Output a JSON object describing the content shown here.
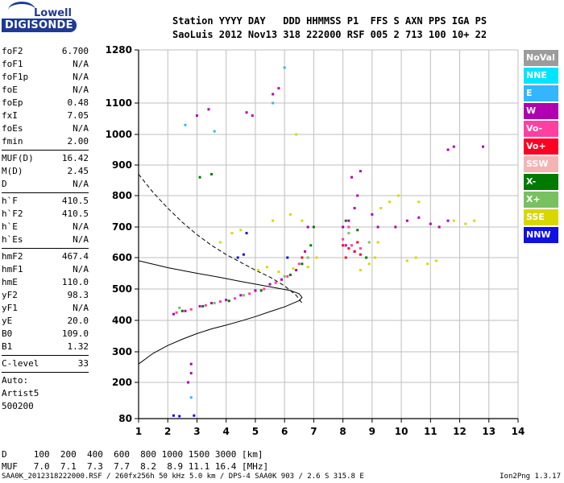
{
  "logo": {
    "line1": "Lowell",
    "line2": "DIGISONDE"
  },
  "header": {
    "line1": "Station YYYY DAY   DDD HHMMSS P1  FFS S AXN PPS IGA PS",
    "line2": "SaoLuis 2012 Nov13 318 222000 RSF 005 2 713 100 10+ 22"
  },
  "params": [
    {
      "k": "foF2",
      "v": "6.700"
    },
    {
      "k": "foF1",
      "v": "N/A"
    },
    {
      "k": "foF1p",
      "v": "N/A"
    },
    {
      "k": "foE",
      "v": "N/A"
    },
    {
      "k": "foEp",
      "v": "0.48"
    },
    {
      "k": "fxI",
      "v": "7.05"
    },
    {
      "k": "foEs",
      "v": "N/A"
    },
    {
      "k": "fmin",
      "v": "2.00"
    },
    {
      "k": "SEP"
    },
    {
      "k": "MUF(D)",
      "v": "16.42"
    },
    {
      "k": "M(D)",
      "v": "2.45"
    },
    {
      "k": "D",
      "v": "N/A"
    },
    {
      "k": "SEP"
    },
    {
      "k": "h`F",
      "v": "410.5"
    },
    {
      "k": "h`F2",
      "v": "410.5"
    },
    {
      "k": "h`E",
      "v": "N/A"
    },
    {
      "k": "h`Es",
      "v": "N/A"
    },
    {
      "k": "SEP"
    },
    {
      "k": "hmF2",
      "v": "467.4"
    },
    {
      "k": "hmF1",
      "v": "N/A"
    },
    {
      "k": "hmE",
      "v": "110.0"
    },
    {
      "k": "yF2",
      "v": "98.3"
    },
    {
      "k": "yF1",
      "v": "N/A"
    },
    {
      "k": "yE",
      "v": "20.0"
    },
    {
      "k": "B0",
      "v": "109.0"
    },
    {
      "k": "B1",
      "v": "1.32"
    },
    {
      "k": "SEP"
    },
    {
      "k": "C-level",
      "v": "33"
    },
    {
      "k": "SEP"
    },
    {
      "k": "Auto:"
    },
    {
      "k": "Artist5"
    },
    {
      "k": "500200"
    }
  ],
  "legend": [
    {
      "label": "NoVal",
      "color": "#9c9c9c"
    },
    {
      "label": "NNE",
      "color": "#00e5ff"
    },
    {
      "label": "E",
      "color": "#33b5ff"
    },
    {
      "label": "W",
      "color": "#b000b0"
    },
    {
      "label": "Vo-",
      "color": "#ff40a0"
    },
    {
      "label": "Vo+",
      "color": "#ff0022"
    },
    {
      "label": "SSW",
      "color": "#f5b4b4"
    },
    {
      "label": "X-",
      "color": "#007a00"
    },
    {
      "label": "X+",
      "color": "#78c060"
    },
    {
      "label": "SSE",
      "color": "#d8d800"
    },
    {
      "label": "NNW",
      "color": "#1010e0"
    }
  ],
  "muf_table": {
    "line1": "D     100  200  400  600  800 1000 1500 3000 [km]",
    "line2": "MUF   7.0  7.1  7.3  7.7  8.2  8.9 11.1 16.4 [MHz]"
  },
  "footer": "SAA0K_2012318222000.RSF / 260fx256h 50 kHz 5.0 km / DPS-4 SAA0K 903 / 2.6 S 315.8 E",
  "version": "Ion2Png 1.3.17",
  "chart_data": {
    "type": "scatter",
    "x_ticks": [
      1,
      2,
      3,
      4,
      5,
      6,
      7,
      8,
      9,
      10,
      11,
      12,
      13,
      14
    ],
    "y_ticks": [
      80,
      200,
      300,
      400,
      500,
      600,
      700,
      800,
      900,
      1000,
      1100,
      1280
    ],
    "xlim": [
      1,
      14
    ],
    "ylim": [
      80,
      1280
    ],
    "grid": true,
    "series": [
      {
        "name": "W",
        "color": "#b000b0",
        "points": [
          [
            2.2,
            420
          ],
          [
            2.6,
            430
          ],
          [
            3.1,
            445
          ],
          [
            3.5,
            455
          ],
          [
            4.0,
            465
          ],
          [
            4.5,
            480
          ],
          [
            5.0,
            495
          ],
          [
            5.5,
            515
          ],
          [
            5.9,
            530
          ],
          [
            6.4,
            560
          ],
          [
            6.7,
            620
          ],
          [
            6.8,
            700
          ],
          [
            8.0,
            700
          ],
          [
            8.2,
            720
          ],
          [
            8.4,
            760
          ],
          [
            8.5,
            800
          ],
          [
            8.3,
            860
          ],
          [
            8.6,
            880
          ],
          [
            9.0,
            740
          ],
          [
            9.2,
            700
          ],
          [
            9.8,
            700
          ],
          [
            10.2,
            720
          ],
          [
            10.6,
            730
          ],
          [
            11.0,
            710
          ],
          [
            11.3,
            700
          ],
          [
            11.6,
            720
          ],
          [
            8.1,
            640
          ],
          [
            8.4,
            620
          ],
          [
            4.7,
            1070
          ],
          [
            4.9,
            1060
          ],
          [
            5.6,
            1130
          ],
          [
            5.8,
            1150
          ],
          [
            3.0,
            1060
          ],
          [
            3.4,
            1080
          ],
          [
            2.8,
            260
          ],
          [
            2.8,
            230
          ],
          [
            2.7,
            200
          ],
          [
            11.6,
            950
          ],
          [
            11.8,
            960
          ],
          [
            12.8,
            960
          ]
        ]
      },
      {
        "name": "Vo-",
        "color": "#ff40a0",
        "points": [
          [
            2.3,
            425
          ],
          [
            2.8,
            435
          ],
          [
            3.3,
            448
          ],
          [
            3.8,
            460
          ],
          [
            4.3,
            470
          ],
          [
            4.8,
            485
          ],
          [
            5.3,
            500
          ],
          [
            5.7,
            520
          ],
          [
            6.1,
            540
          ],
          [
            8.0,
            660
          ],
          [
            8.3,
            640
          ],
          [
            8.6,
            630
          ],
          [
            6.5,
            580
          ],
          [
            8.2,
            700
          ]
        ]
      },
      {
        "name": "Vo+",
        "color": "#ff0022",
        "points": [
          [
            8.0,
            640
          ],
          [
            8.2,
            630
          ],
          [
            8.4,
            620
          ],
          [
            8.6,
            610
          ],
          [
            8.1,
            600
          ],
          [
            8.5,
            650
          ],
          [
            6.6,
            600
          ]
        ]
      },
      {
        "name": "X-",
        "color": "#007a00",
        "points": [
          [
            2.5,
            430
          ],
          [
            3.2,
            445
          ],
          [
            4.1,
            462
          ],
          [
            5.2,
            495
          ],
          [
            6.2,
            545
          ],
          [
            6.6,
            580
          ],
          [
            6.9,
            640
          ],
          [
            7.0,
            700
          ],
          [
            8.1,
            720
          ],
          [
            8.5,
            690
          ],
          [
            8.8,
            600
          ],
          [
            3.1,
            860
          ],
          [
            3.5,
            870
          ]
        ]
      },
      {
        "name": "X+",
        "color": "#78c060",
        "points": [
          [
            2.4,
            440
          ],
          [
            3.6,
            455
          ],
          [
            4.6,
            480
          ],
          [
            6.0,
            540
          ],
          [
            6.8,
            600
          ],
          [
            8.2,
            680
          ],
          [
            8.9,
            650
          ]
        ]
      },
      {
        "name": "SSE",
        "color": "#d8d800",
        "points": [
          [
            5.1,
            560
          ],
          [
            5.4,
            570
          ],
          [
            5.8,
            555
          ],
          [
            6.3,
            565
          ],
          [
            6.8,
            570
          ],
          [
            7.1,
            600
          ],
          [
            8.6,
            560
          ],
          [
            8.9,
            580
          ],
          [
            9.1,
            600
          ],
          [
            9.2,
            650
          ],
          [
            10.2,
            590
          ],
          [
            10.5,
            600
          ],
          [
            10.9,
            580
          ],
          [
            11.2,
            590
          ],
          [
            4.2,
            680
          ],
          [
            4.5,
            690
          ],
          [
            3.8,
            650
          ],
          [
            5.6,
            720
          ],
          [
            6.2,
            740
          ],
          [
            6.6,
            720
          ],
          [
            9.3,
            760
          ],
          [
            9.6,
            780
          ],
          [
            9.9,
            800
          ],
          [
            10.6,
            780
          ],
          [
            11.8,
            720
          ],
          [
            12.2,
            710
          ],
          [
            12.5,
            720
          ],
          [
            6.4,
            1000
          ]
        ]
      },
      {
        "name": "NNW",
        "color": "#1010e0",
        "points": [
          [
            4.4,
            600
          ],
          [
            4.6,
            610
          ],
          [
            2.2,
            90
          ],
          [
            2.4,
            88
          ],
          [
            2.9,
            90
          ],
          [
            4.7,
            680
          ],
          [
            6.1,
            600
          ]
        ]
      },
      {
        "name": "E",
        "color": "#33b5ff",
        "points": [
          [
            2.8,
            150
          ],
          [
            2.6,
            1030
          ],
          [
            3.6,
            1010
          ],
          [
            5.6,
            1100
          ],
          [
            6.0,
            1220
          ]
        ]
      }
    ],
    "traces": [
      {
        "name": "fitted profile (solid)",
        "style": "solid",
        "points": [
          [
            1.0,
            260
          ],
          [
            1.5,
            295
          ],
          [
            2.0,
            320
          ],
          [
            2.5,
            340
          ],
          [
            3.0,
            358
          ],
          [
            3.5,
            373
          ],
          [
            4.0,
            385
          ],
          [
            4.5,
            398
          ],
          [
            5.0,
            412
          ],
          [
            5.5,
            428
          ],
          [
            6.0,
            443
          ],
          [
            6.3,
            455
          ],
          [
            6.5,
            463
          ],
          [
            6.6,
            473
          ],
          [
            6.5,
            485
          ],
          [
            6.2,
            495
          ],
          [
            5.8,
            502
          ],
          [
            5.2,
            512
          ],
          [
            4.5,
            524
          ],
          [
            3.8,
            537
          ],
          [
            3.0,
            550
          ],
          [
            2.0,
            568
          ],
          [
            1.0,
            590
          ]
        ]
      },
      {
        "name": "MUF curve (dashed)",
        "style": "dashed",
        "points": [
          [
            1.0,
            870
          ],
          [
            1.5,
            810
          ],
          [
            2.0,
            760
          ],
          [
            2.5,
            715
          ],
          [
            3.0,
            675
          ],
          [
            3.5,
            640
          ],
          [
            4.0,
            610
          ],
          [
            4.5,
            585
          ],
          [
            5.0,
            560
          ],
          [
            5.5,
            538
          ],
          [
            6.0,
            510
          ],
          [
            6.4,
            480
          ],
          [
            6.6,
            455
          ]
        ]
      }
    ]
  }
}
